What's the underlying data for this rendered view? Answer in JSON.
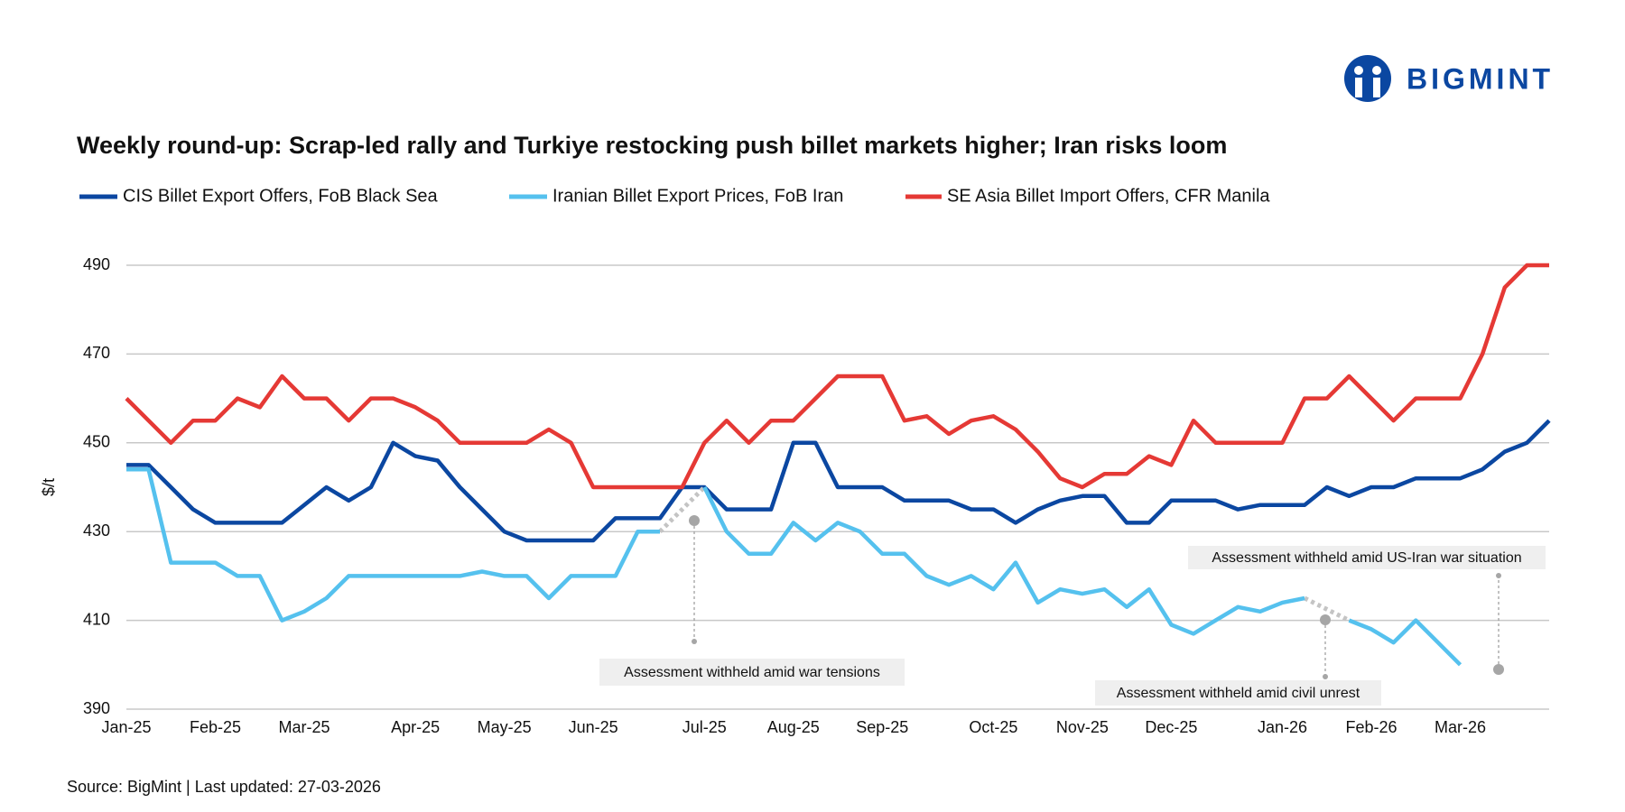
{
  "brand": "BIGMINT",
  "source": "Source: BigMint | Last updated: 27-03-2026",
  "chart_data": {
    "type": "line",
    "title": "Weekly round-up: Scrap-led rally and Turkiye restocking push billet markets higher; Iran risks loom",
    "y_label": "$/t",
    "categories": [
      "Jan-25",
      null,
      null,
      null,
      "Feb-25",
      null,
      null,
      null,
      "Mar-25",
      null,
      null,
      null,
      null,
      "Apr-25",
      null,
      null,
      null,
      "May-25",
      null,
      null,
      null,
      "Jun-25",
      null,
      null,
      null,
      null,
      "Jul-25",
      null,
      null,
      null,
      "Aug-25",
      null,
      null,
      null,
      "Sep-25",
      null,
      null,
      null,
      null,
      "Oct-25",
      null,
      null,
      null,
      "Nov-25",
      null,
      null,
      null,
      "Dec-25",
      null,
      null,
      null,
      null,
      "Jan-26",
      null,
      null,
      null,
      "Feb-26",
      null,
      null,
      null,
      "Mar-26",
      null,
      null,
      null,
      null
    ],
    "series": [
      {
        "name": "CIS Billet Export Offers, FoB Black Sea",
        "color": "#0b47a1",
        "values": [
          445,
          445,
          440,
          435,
          432,
          432,
          432,
          432,
          436,
          440,
          437,
          440,
          450,
          447,
          446,
          440,
          435,
          430,
          428,
          428,
          428,
          428,
          433,
          433,
          433,
          440,
          440,
          435,
          435,
          435,
          450,
          450,
          440,
          440,
          440,
          437,
          437,
          437,
          435,
          435,
          432,
          435,
          437,
          438,
          438,
          432,
          432,
          437,
          437,
          437,
          435,
          436,
          436,
          436,
          440,
          438,
          440,
          440,
          442,
          442,
          442,
          444,
          448,
          450,
          455
        ]
      },
      {
        "name": "Iranian Billet Export Prices, FoB Iran",
        "color": "#55c1ee",
        "values": [
          444,
          444,
          423,
          423,
          423,
          420,
          420,
          410,
          412,
          415,
          420,
          420,
          420,
          420,
          420,
          420,
          421,
          420,
          420,
          415,
          420,
          420,
          420,
          430,
          430,
          null,
          440,
          430,
          425,
          425,
          432,
          428,
          432,
          430,
          425,
          425,
          420,
          418,
          420,
          417,
          423,
          414,
          417,
          416,
          417,
          413,
          417,
          409,
          407,
          410,
          413,
          412,
          414,
          415,
          null,
          410,
          408,
          405,
          410,
          405,
          400,
          null,
          null,
          null,
          null
        ]
      },
      {
        "name": "SE Asia Billet Import Offers, CFR Manila",
        "color": "#e53935",
        "values": [
          460,
          455,
          450,
          455,
          455,
          460,
          458,
          465,
          460,
          460,
          455,
          460,
          460,
          458,
          455,
          450,
          450,
          450,
          450,
          453,
          450,
          440,
          440,
          440,
          440,
          440,
          450,
          455,
          450,
          455,
          455,
          460,
          465,
          465,
          465,
          455,
          456,
          452,
          455,
          456,
          453,
          448,
          442,
          440,
          443,
          443,
          447,
          445,
          455,
          450,
          450,
          450,
          450,
          460,
          460,
          465,
          460,
          455,
          460,
          460,
          460,
          470,
          485,
          490,
          490
        ]
      }
    ],
    "ylim": [
      390,
      490
    ],
    "yticks": [
      390,
      410,
      430,
      450,
      470,
      490
    ],
    "grid": true,
    "annotations": [
      "Assessment withheld amid  war tensions",
      "Assessment withheld amid civil unrest",
      "Assessment withheld amid US-Iran war situation"
    ]
  }
}
